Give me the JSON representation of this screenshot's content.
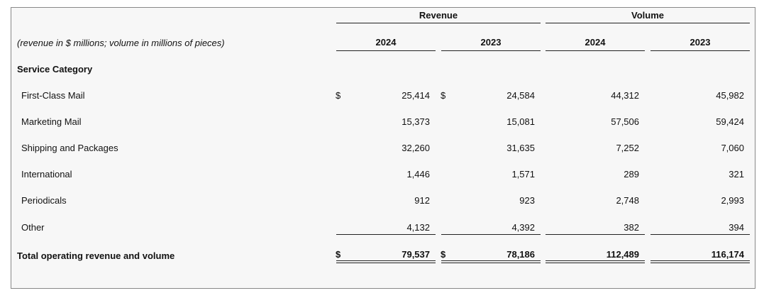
{
  "headers": {
    "revenue": "Revenue",
    "volume": "Volume",
    "note": "(revenue in $ millions; volume in millions of pieces)",
    "years": [
      "2024",
      "2023",
      "2024",
      "2023"
    ]
  },
  "section_label": "Service Category",
  "currency_symbol": "$",
  "rows": [
    {
      "label": "First-Class Mail",
      "values": [
        "25,414",
        "24,584",
        "44,312",
        "45,982"
      ]
    },
    {
      "label": "Marketing Mail",
      "values": [
        "15,373",
        "15,081",
        "57,506",
        "59,424"
      ]
    },
    {
      "label": "Shipping and Packages",
      "values": [
        "32,260",
        "31,635",
        "7,252",
        "7,060"
      ]
    },
    {
      "label": "International",
      "values": [
        "1,446",
        "1,571",
        "289",
        "321"
      ]
    },
    {
      "label": "Periodicals",
      "values": [
        "912",
        "923",
        "2,748",
        "2,993"
      ]
    },
    {
      "label": "Other",
      "values": [
        "4,132",
        "4,392",
        "382",
        "394"
      ]
    }
  ],
  "total": {
    "label": "Total operating revenue and volume",
    "values": [
      "79,537",
      "78,186",
      "112,489",
      "116,174"
    ]
  }
}
